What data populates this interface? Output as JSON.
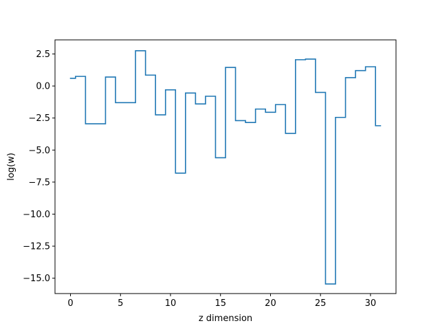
{
  "chart_data": {
    "type": "line",
    "drawstyle": "steps-mid",
    "title": "",
    "xlabel": "z dimension",
    "ylabel": "log(w)",
    "xlim": [
      -1.55,
      32.55
    ],
    "ylim": [
      -16.2,
      3.6
    ],
    "xticks": [
      0,
      5,
      10,
      15,
      20,
      25,
      30
    ],
    "xtick_labels": [
      "0",
      "5",
      "10",
      "15",
      "20",
      "25",
      "30"
    ],
    "yticks": [
      2.5,
      0.0,
      -2.5,
      -5.0,
      -7.5,
      -10.0,
      -12.5,
      -15.0
    ],
    "ytick_labels": [
      "2.5",
      "0.0",
      "−2.5",
      "−5.0",
      "−7.5",
      "−10.0",
      "−12.5",
      "−15.0"
    ],
    "grid": false,
    "color": "#1f77b4",
    "series": [
      {
        "x": [
          0,
          1,
          2,
          3,
          4,
          5,
          6,
          7,
          8,
          9,
          10,
          11,
          12,
          13,
          14,
          15,
          16,
          17,
          18,
          19,
          20,
          21,
          22,
          23,
          24,
          25,
          26,
          27,
          28,
          29,
          30,
          31
        ],
        "values": [
          0.6,
          0.75,
          -2.95,
          -2.95,
          0.7,
          -1.3,
          -1.3,
          2.75,
          0.85,
          -2.25,
          -0.3,
          -6.8,
          -0.55,
          -1.4,
          -0.8,
          -5.6,
          1.45,
          -2.7,
          -2.85,
          -1.8,
          -2.05,
          -1.45,
          -3.7,
          2.05,
          2.1,
          -0.5,
          -15.45,
          -2.45,
          0.65,
          1.2,
          1.5,
          -3.1
        ]
      }
    ]
  }
}
